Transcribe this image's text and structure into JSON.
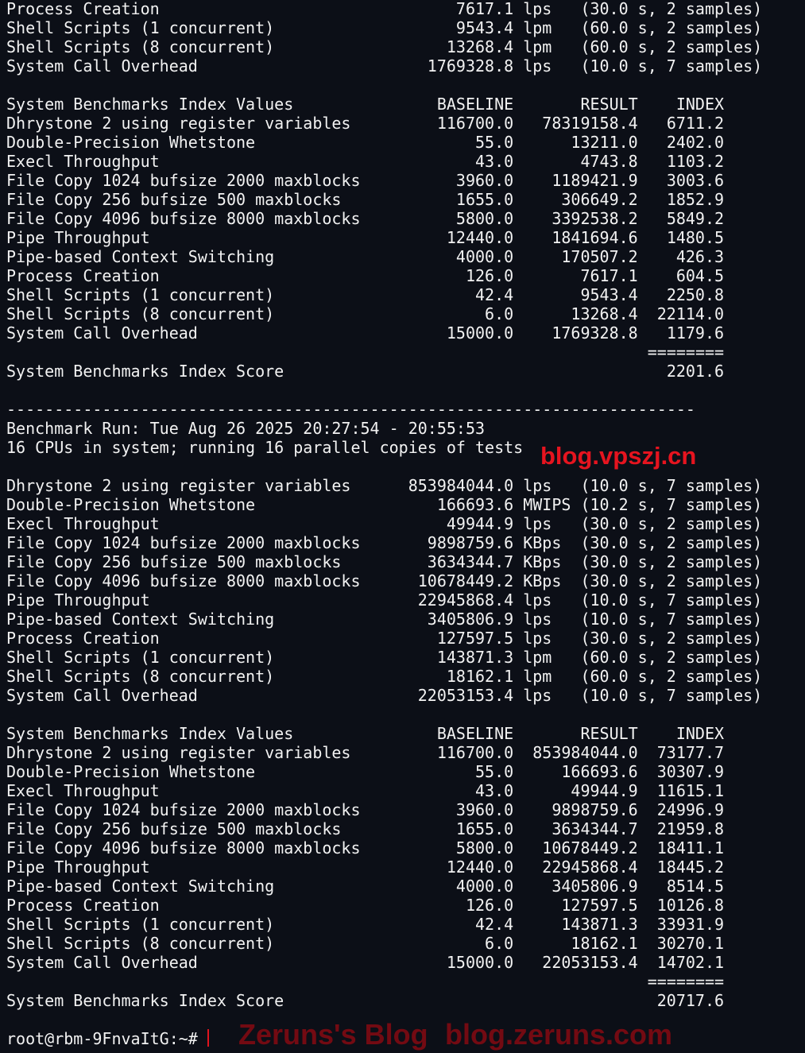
{
  "colors": {
    "background": "#0c0f17",
    "text": "#f2f2f2",
    "watermark": "#e6141f",
    "cursor": "#e0141e"
  },
  "run1_tail": [
    {
      "name": "Process Creation",
      "value": "7617.1",
      "unit": "lps",
      "params": "(30.0 s, 2 samples)"
    },
    {
      "name": "Shell Scripts (1 concurrent)",
      "value": "9543.4",
      "unit": "lpm",
      "params": "(60.0 s, 2 samples)"
    },
    {
      "name": "Shell Scripts (8 concurrent)",
      "value": "13268.4",
      "unit": "lpm",
      "params": "(60.0 s, 2 samples)"
    },
    {
      "name": "System Call Overhead",
      "value": "1769328.8",
      "unit": "lps",
      "params": "(10.0 s, 7 samples)"
    }
  ],
  "index1": {
    "header": {
      "name": "System Benchmarks Index Values",
      "baseline": "BASELINE",
      "result": "RESULT",
      "index": "INDEX"
    },
    "rows": [
      {
        "name": "Dhrystone 2 using register variables",
        "baseline": "116700.0",
        "result": "78319158.4",
        "index": "6711.2"
      },
      {
        "name": "Double-Precision Whetstone",
        "baseline": "55.0",
        "result": "13211.0",
        "index": "2402.0"
      },
      {
        "name": "Execl Throughput",
        "baseline": "43.0",
        "result": "4743.8",
        "index": "1103.2"
      },
      {
        "name": "File Copy 1024 bufsize 2000 maxblocks",
        "baseline": "3960.0",
        "result": "1189421.9",
        "index": "3003.6"
      },
      {
        "name": "File Copy 256 bufsize 500 maxblocks",
        "baseline": "1655.0",
        "result": "306649.2",
        "index": "1852.9"
      },
      {
        "name": "File Copy 4096 bufsize 8000 maxblocks",
        "baseline": "5800.0",
        "result": "3392538.2",
        "index": "5849.2"
      },
      {
        "name": "Pipe Throughput",
        "baseline": "12440.0",
        "result": "1841694.6",
        "index": "1480.5"
      },
      {
        "name": "Pipe-based Context Switching",
        "baseline": "4000.0",
        "result": "170507.2",
        "index": "426.3"
      },
      {
        "name": "Process Creation",
        "baseline": "126.0",
        "result": "7617.1",
        "index": "604.5"
      },
      {
        "name": "Shell Scripts (1 concurrent)",
        "baseline": "42.4",
        "result": "9543.4",
        "index": "2250.8"
      },
      {
        "name": "Shell Scripts (8 concurrent)",
        "baseline": "6.0",
        "result": "13268.4",
        "index": "22114.0"
      },
      {
        "name": "System Call Overhead",
        "baseline": "15000.0",
        "result": "1769328.8",
        "index": "1179.6"
      }
    ],
    "separator": "========",
    "score_label": "System Benchmarks Index Score",
    "score": "2201.6"
  },
  "divider": "------------------------------------------------------------------------",
  "run2": {
    "header": "Benchmark Run: Tue Aug 26 2025 20:27:54 - 20:55:53",
    "cpus": "16 CPUs in system; running 16 parallel copies of tests",
    "results": [
      {
        "name": "Dhrystone 2 using register variables",
        "value": "853984044.0",
        "unit": "lps",
        "params": "(10.0 s, 7 samples)"
      },
      {
        "name": "Double-Precision Whetstone",
        "value": "166693.6",
        "unit": "MWIPS",
        "params": "(10.2 s, 7 samples)"
      },
      {
        "name": "Execl Throughput",
        "value": "49944.9",
        "unit": "lps",
        "params": "(30.0 s, 2 samples)"
      },
      {
        "name": "File Copy 1024 bufsize 2000 maxblocks",
        "value": "9898759.6",
        "unit": "KBps",
        "params": "(30.0 s, 2 samples)"
      },
      {
        "name": "File Copy 256 bufsize 500 maxblocks",
        "value": "3634344.7",
        "unit": "KBps",
        "params": "(30.0 s, 2 samples)"
      },
      {
        "name": "File Copy 4096 bufsize 8000 maxblocks",
        "value": "10678449.2",
        "unit": "KBps",
        "params": "(30.0 s, 2 samples)"
      },
      {
        "name": "Pipe Throughput",
        "value": "22945868.4",
        "unit": "lps",
        "params": "(10.0 s, 7 samples)"
      },
      {
        "name": "Pipe-based Context Switching",
        "value": "3405806.9",
        "unit": "lps",
        "params": "(10.0 s, 7 samples)"
      },
      {
        "name": "Process Creation",
        "value": "127597.5",
        "unit": "lps",
        "params": "(30.0 s, 2 samples)"
      },
      {
        "name": "Shell Scripts (1 concurrent)",
        "value": "143871.3",
        "unit": "lpm",
        "params": "(60.0 s, 2 samples)"
      },
      {
        "name": "Shell Scripts (8 concurrent)",
        "value": "18162.1",
        "unit": "lpm",
        "params": "(60.0 s, 2 samples)"
      },
      {
        "name": "System Call Overhead",
        "value": "22053153.4",
        "unit": "lps",
        "params": "(10.0 s, 7 samples)"
      }
    ]
  },
  "index2": {
    "header": {
      "name": "System Benchmarks Index Values",
      "baseline": "BASELINE",
      "result": "RESULT",
      "index": "INDEX"
    },
    "rows": [
      {
        "name": "Dhrystone 2 using register variables",
        "baseline": "116700.0",
        "result": "853984044.0",
        "index": "73177.7"
      },
      {
        "name": "Double-Precision Whetstone",
        "baseline": "55.0",
        "result": "166693.6",
        "index": "30307.9"
      },
      {
        "name": "Execl Throughput",
        "baseline": "43.0",
        "result": "49944.9",
        "index": "11615.1"
      },
      {
        "name": "File Copy 1024 bufsize 2000 maxblocks",
        "baseline": "3960.0",
        "result": "9898759.6",
        "index": "24996.9"
      },
      {
        "name": "File Copy 256 bufsize 500 maxblocks",
        "baseline": "1655.0",
        "result": "3634344.7",
        "index": "21959.8"
      },
      {
        "name": "File Copy 4096 bufsize 8000 maxblocks",
        "baseline": "5800.0",
        "result": "10678449.2",
        "index": "18411.1"
      },
      {
        "name": "Pipe Throughput",
        "baseline": "12440.0",
        "result": "22945868.4",
        "index": "18445.2"
      },
      {
        "name": "Pipe-based Context Switching",
        "baseline": "4000.0",
        "result": "3405806.9",
        "index": "8514.5"
      },
      {
        "name": "Process Creation",
        "baseline": "126.0",
        "result": "127597.5",
        "index": "10126.8"
      },
      {
        "name": "Shell Scripts (1 concurrent)",
        "baseline": "42.4",
        "result": "143871.3",
        "index": "33931.9"
      },
      {
        "name": "Shell Scripts (8 concurrent)",
        "baseline": "6.0",
        "result": "18162.1",
        "index": "30270.1"
      },
      {
        "name": "System Call Overhead",
        "baseline": "15000.0",
        "result": "22053153.4",
        "index": "14702.1"
      }
    ],
    "separator": "========",
    "score_label": "System Benchmarks Index Score",
    "score": "20717.6"
  },
  "prompt": "root@rbm-9FnvaItG:~#",
  "watermarks": {
    "vpszj": "blog.vpszj.cn",
    "zeruns_title": "Zeruns's Blog",
    "zeruns_url": "blog.zeruns.com"
  }
}
